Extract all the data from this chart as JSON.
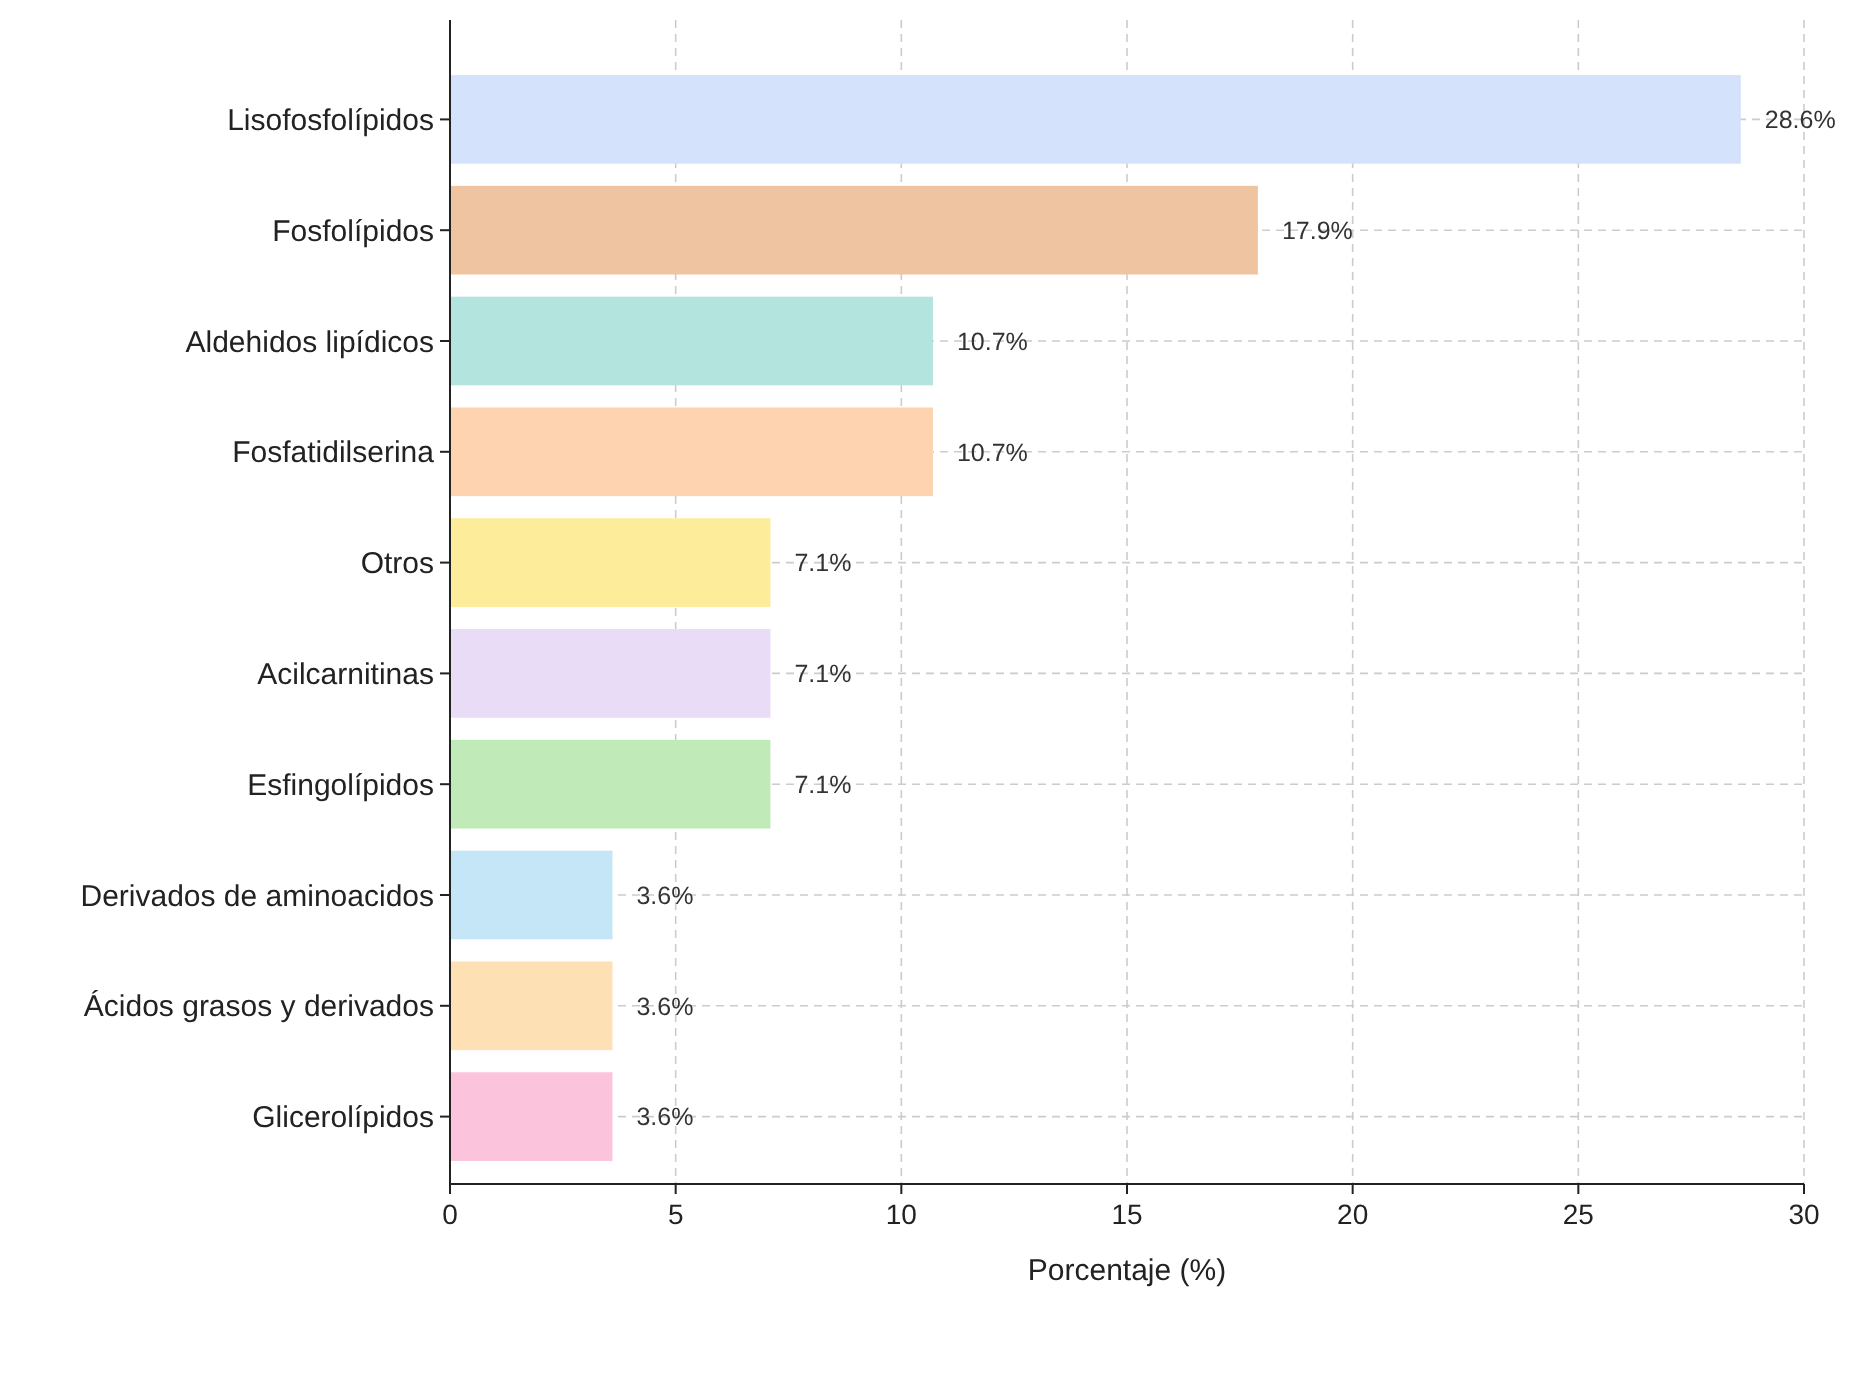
{
  "chart_data": {
    "type": "bar",
    "orientation": "horizontal",
    "xlabel": "Porcentaje (%)",
    "categories": [
      "Lisofosfolípidos",
      "Fosfolípidos",
      "Aldehidos lipídicos",
      "Fosfatidilserina",
      "Otros",
      "Acilcarnitinas",
      "Esfingolípidos",
      "Derivados de aminoacidos",
      "Ácidos grasos y derivados",
      "Glicerolípidos"
    ],
    "values": [
      28.6,
      17.9,
      10.7,
      10.7,
      7.1,
      7.1,
      7.1,
      3.6,
      3.6,
      3.6
    ],
    "value_labels": [
      "28.6%",
      "17.9%",
      "10.7%",
      "10.7%",
      "7.1%",
      "7.1%",
      "7.1%",
      "3.6%",
      "3.6%",
      "3.6%"
    ],
    "colors": [
      "#d4e2fc",
      "#efc4a0",
      "#b3e4dd",
      "#fdd3b0",
      "#fdec9a",
      "#e8dcf6",
      "#c0eab8",
      "#c4e6f6",
      "#fde1b4",
      "#fcc4dc"
    ],
    "xlim": [
      0,
      30
    ],
    "xticks": [
      0,
      5,
      10,
      15,
      20,
      25,
      30
    ],
    "grid": true
  }
}
